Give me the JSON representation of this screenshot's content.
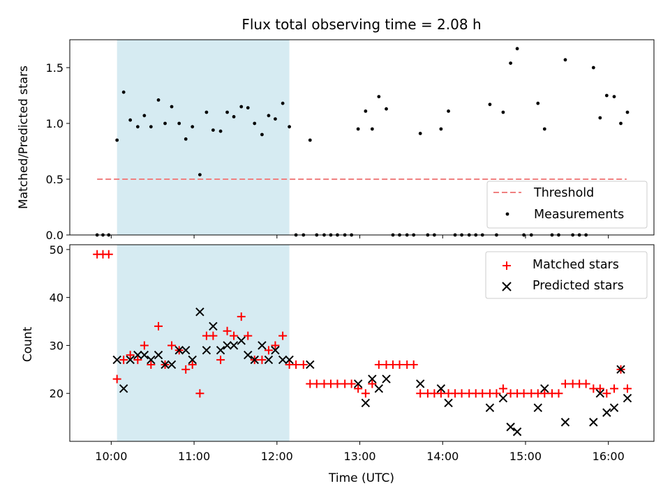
{
  "chart_data": [
    {
      "type": "scatter",
      "title": "Flux total observing time = 2.08 h",
      "xlabel": "",
      "ylabel": "Matched/Predicted stars",
      "xlim": [
        9.5,
        16.55
      ],
      "ylim": [
        0,
        1.75
      ],
      "yticks": [
        0.0,
        0.5,
        1.0,
        1.5
      ],
      "ytick_labels": [
        "0.0",
        "0.5",
        "1.0",
        "1.5"
      ],
      "shaded_interval": [
        10.07,
        12.15
      ],
      "threshold": {
        "value": 0.5,
        "x_range": [
          9.83,
          16.22
        ],
        "label": "Threshold",
        "color": "#f08080"
      },
      "series": [
        {
          "name": "Measurements",
          "color": "#000000",
          "x": [
            9.83,
            9.9,
            9.97,
            10.07,
            10.15,
            10.23,
            10.32,
            10.4,
            10.48,
            10.57,
            10.65,
            10.73,
            10.82,
            10.9,
            10.98,
            11.07,
            11.15,
            11.23,
            11.32,
            11.4,
            11.48,
            11.57,
            11.65,
            11.73,
            11.82,
            11.9,
            11.98,
            12.07,
            12.15,
            12.23,
            12.32,
            12.4,
            12.48,
            12.57,
            12.65,
            12.73,
            12.82,
            12.9,
            12.98,
            13.07,
            13.15,
            13.23,
            13.32,
            13.4,
            13.48,
            13.57,
            13.65,
            13.73,
            13.82,
            13.9,
            13.98,
            14.07,
            14.15,
            14.23,
            14.32,
            14.4,
            14.48,
            14.57,
            14.65,
            14.73,
            14.82,
            14.9,
            14.98,
            15.07,
            15.15,
            15.23,
            15.32,
            15.4,
            15.48,
            15.57,
            15.65,
            15.73,
            15.82,
            15.9,
            15.98,
            16.07,
            16.15,
            16.23
          ],
          "values": [
            0.0,
            0.0,
            0.0,
            0.85,
            1.28,
            1.03,
            0.97,
            1.07,
            0.97,
            1.21,
            1.0,
            1.15,
            1.0,
            0.86,
            0.97,
            0.54,
            1.1,
            0.94,
            0.93,
            1.1,
            1.06,
            1.15,
            1.14,
            1.0,
            0.9,
            1.07,
            1.04,
            1.18,
            0.97,
            0.0,
            0.0,
            0.85,
            0.0,
            0.0,
            0.0,
            0.0,
            0.0,
            0.0,
            0.95,
            1.11,
            0.95,
            1.24,
            1.13,
            0.0,
            0.0,
            0.0,
            0.0,
            0.91,
            0.0,
            0.0,
            0.95,
            1.11,
            0.0,
            0.0,
            0.0,
            0.0,
            0.0,
            1.17,
            0.0,
            1.1,
            1.54,
            1.67,
            0.0,
            0.0,
            1.18,
            0.95,
            0.0,
            0.0,
            1.57,
            0.0,
            0.0,
            0.0,
            1.5,
            1.05,
            1.25,
            1.24,
            1.0,
            1.1
          ]
        }
      ],
      "legend": {
        "placement": "lower-right",
        "entries": [
          "Threshold",
          "Measurements"
        ]
      }
    },
    {
      "type": "scatter",
      "title": "",
      "xlabel": "Time (UTC)",
      "ylabel": "Count",
      "xlim": [
        9.5,
        16.55
      ],
      "ylim": [
        10,
        51
      ],
      "xticks": [
        10,
        11,
        12,
        13,
        14,
        15,
        16
      ],
      "xtick_labels": [
        "10:00",
        "11:00",
        "12:00",
        "13:00",
        "14:00",
        "15:00",
        "16:00"
      ],
      "yticks": [
        20,
        30,
        40,
        50
      ],
      "ytick_labels": [
        "20",
        "30",
        "40",
        "50"
      ],
      "shaded_interval": [
        10.07,
        12.15
      ],
      "series": [
        {
          "name": "Matched stars",
          "marker": "+",
          "color": "#ff0000",
          "x": [
            9.83,
            9.9,
            9.97,
            10.07,
            10.15,
            10.23,
            10.32,
            10.4,
            10.48,
            10.57,
            10.65,
            10.73,
            10.82,
            10.9,
            10.98,
            11.07,
            11.15,
            11.23,
            11.32,
            11.4,
            11.48,
            11.57,
            11.65,
            11.73,
            11.82,
            11.9,
            11.98,
            12.07,
            12.15,
            12.23,
            12.32,
            12.4,
            12.48,
            12.57,
            12.65,
            12.73,
            12.82,
            12.9,
            12.98,
            13.07,
            13.15,
            13.23,
            13.32,
            13.4,
            13.48,
            13.57,
            13.65,
            13.73,
            13.82,
            13.9,
            13.98,
            14.07,
            14.15,
            14.23,
            14.32,
            14.4,
            14.48,
            14.57,
            14.65,
            14.73,
            14.82,
            14.9,
            14.98,
            15.07,
            15.15,
            15.23,
            15.32,
            15.4,
            15.48,
            15.57,
            15.65,
            15.73,
            15.82,
            15.9,
            15.98,
            16.07,
            16.15,
            16.23
          ],
          "values": [
            49,
            49,
            49,
            23,
            27,
            28,
            27,
            30,
            26,
            34,
            26,
            30,
            29,
            25,
            26,
            20,
            32,
            32,
            27,
            33,
            32,
            36,
            32,
            27,
            27,
            29,
            30,
            32,
            26,
            26,
            26,
            22,
            22,
            22,
            22,
            22,
            22,
            22,
            21,
            20,
            22,
            26,
            26,
            26,
            26,
            26,
            26,
            20,
            20,
            20,
            20,
            20,
            20,
            20,
            20,
            20,
            20,
            20,
            20,
            21,
            20,
            20,
            20,
            20,
            20,
            20,
            20,
            20,
            22,
            22,
            22,
            22,
            21,
            21,
            20,
            21,
            25,
            21
          ]
        },
        {
          "name": "Predicted stars",
          "marker": "x",
          "color": "#000000",
          "x": [
            10.07,
            10.15,
            10.23,
            10.32,
            10.4,
            10.48,
            10.57,
            10.65,
            10.73,
            10.82,
            10.9,
            10.98,
            11.07,
            11.15,
            11.23,
            11.32,
            11.4,
            11.48,
            11.57,
            11.65,
            11.73,
            11.82,
            11.9,
            11.98,
            12.07,
            12.15,
            12.4,
            12.98,
            13.07,
            13.15,
            13.23,
            13.32,
            13.73,
            13.98,
            14.07,
            14.57,
            14.73,
            14.82,
            14.9,
            15.15,
            15.23,
            15.48,
            15.82,
            15.9,
            15.98,
            16.07,
            16.15,
            16.23
          ],
          "values": [
            27,
            21,
            27,
            28,
            28,
            27,
            28,
            26,
            26,
            29,
            29,
            27,
            37,
            29,
            34,
            29,
            30,
            30,
            31,
            28,
            27,
            30,
            27,
            29,
            27,
            27,
            26,
            22,
            18,
            23,
            21,
            23,
            22,
            21,
            18,
            17,
            19,
            13,
            12,
            17,
            21,
            14,
            14,
            20,
            16,
            17,
            25,
            19
          ]
        }
      ],
      "legend": {
        "placement": "upper-right",
        "entries": [
          "Matched stars",
          "Predicted stars"
        ]
      }
    }
  ]
}
